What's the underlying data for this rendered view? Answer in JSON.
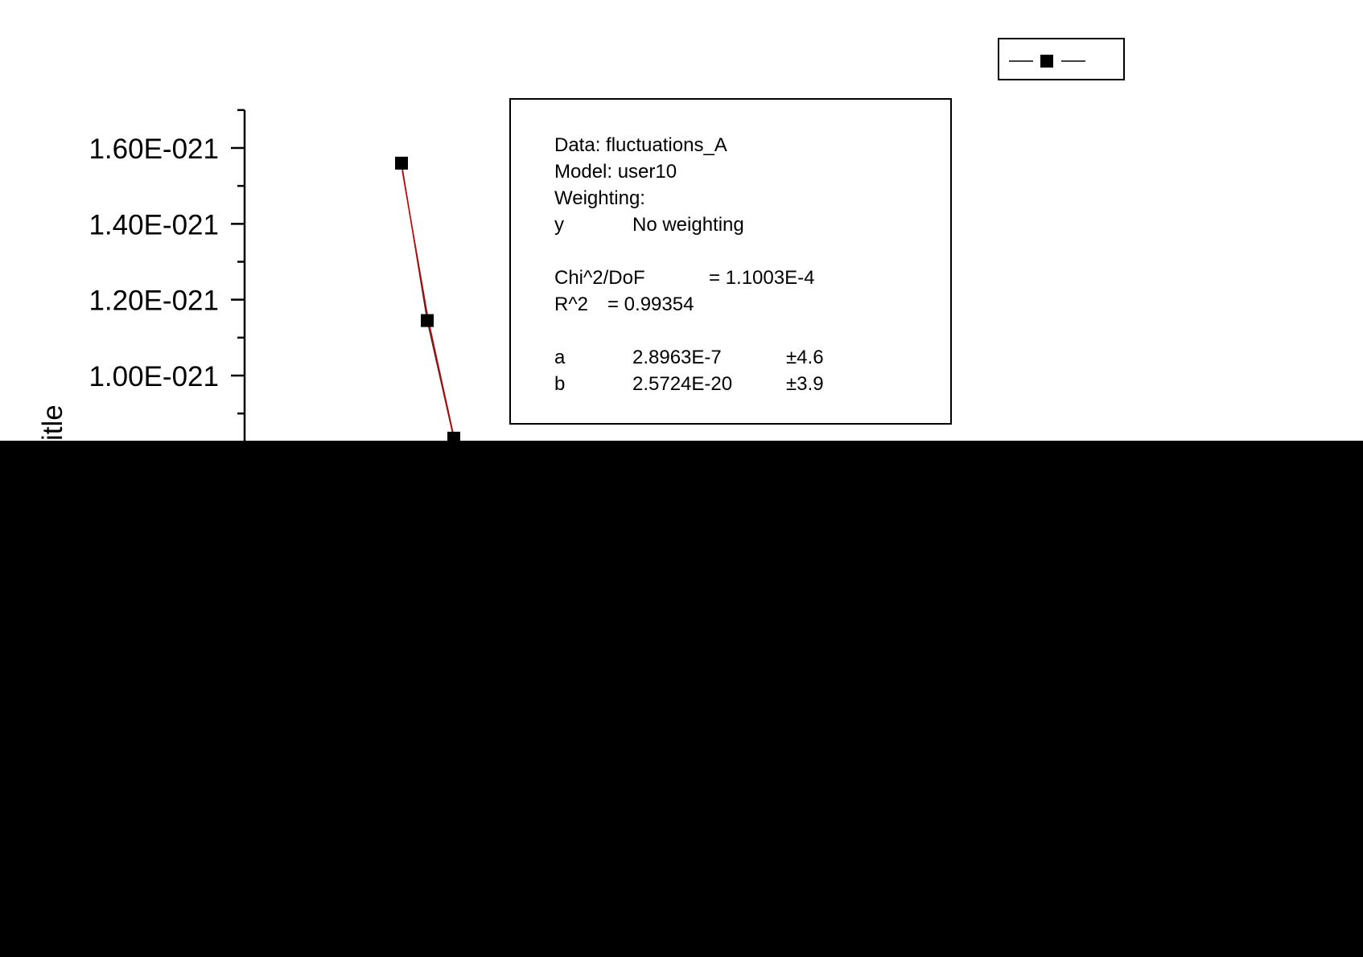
{
  "chart_data": {
    "type": "scatter",
    "title": "",
    "xlabel": "",
    "ylabel": "Y Axis Title",
    "ylabel_visible": "itle",
    "ylim": [
      7e-22,
      1.7e-21
    ],
    "y_ticks": [
      {
        "value": 1.6e-21,
        "label": "1.60E-021"
      },
      {
        "value": 1.4e-21,
        "label": "1.40E-021"
      },
      {
        "value": 1.2e-21,
        "label": "1.20E-021"
      },
      {
        "value": 1e-21,
        "label": "1.00E-021"
      }
    ],
    "series": [
      {
        "name": "",
        "marker": "square",
        "color": "#000000",
        "points_y": [
          1.56e-21,
          1.145e-21,
          8.35e-22
        ]
      }
    ],
    "fit": {
      "color": "#d00000",
      "points_y": [
        1.54e-21,
        1.15e-21,
        8.3e-22
      ]
    },
    "legend": {
      "placement": "top-right",
      "marker": "line-square"
    },
    "grid": false
  },
  "fit_report": {
    "data_line": "Data: fluctuations_A",
    "model_line": "Model: user10",
    "weighting_line": "Weighting:",
    "y_label": "y",
    "y_value": "No weighting",
    "chi_label": "Chi^2/DoF",
    "chi_value": "= 1.1003E-4",
    "r2_label": "R^2",
    "r2_value": "=  0.99354",
    "params": [
      {
        "name": "a",
        "value": "2.8963E-7",
        "error": "±4.6"
      },
      {
        "name": "b",
        "value": "2.5724E-20",
        "error": "±3.9"
      }
    ]
  },
  "colors": {
    "background": "#ffffff",
    "occluded": "#000000",
    "fit_line": "#d00000",
    "data": "#000000"
  }
}
